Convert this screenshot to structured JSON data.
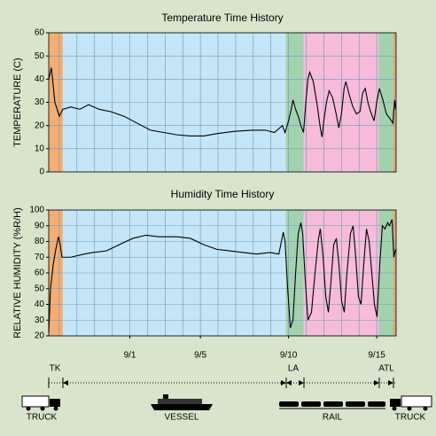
{
  "chart_data": [
    {
      "type": "line",
      "title": "Temperature Time History",
      "ylabel": "TEMPERATURE (C)",
      "color": "#000000",
      "grid": true,
      "xlim": [
        -3.6,
        16.1
      ],
      "ylim": [
        0,
        60
      ],
      "yticks": [
        0,
        10,
        20,
        30,
        40,
        50,
        60
      ],
      "xgrid": [
        -3,
        -2,
        -1,
        0,
        1,
        2,
        3,
        4,
        5,
        6,
        7,
        8,
        9,
        10,
        11,
        12,
        13,
        14,
        15,
        16
      ],
      "bands": [
        {
          "from": -3.6,
          "to": -2.8,
          "color": "#f4ad73"
        },
        {
          "from": -2.8,
          "to": 9.85,
          "color": "#c4e6f6"
        },
        {
          "from": 9.85,
          "to": 10.85,
          "color": "#a3d3ae"
        },
        {
          "from": 10.85,
          "to": 15.12,
          "color": "#f6bcd9"
        },
        {
          "from": 15.12,
          "to": 15.92,
          "color": "#a3d3ae"
        },
        {
          "from": 15.92,
          "to": 16.1,
          "color": "#f4ad73"
        }
      ],
      "x": [
        -3.6,
        -3.45,
        -3.25,
        -3.0,
        -2.8,
        -2.35,
        -1.84,
        -1.34,
        -0.74,
        -0.09,
        0.67,
        1.42,
        2.17,
        2.92,
        3.68,
        4.43,
        5.18,
        5.93,
        6.94,
        7.94,
        8.69,
        9.2,
        9.5,
        9.65,
        9.8,
        10.0,
        10.15,
        10.25,
        10.4,
        10.55,
        10.7,
        10.85,
        11.0,
        11.1,
        11.2,
        11.4,
        11.6,
        11.8,
        11.9,
        12.0,
        12.15,
        12.3,
        12.5,
        12.7,
        12.85,
        13.0,
        13.15,
        13.25,
        13.45,
        13.65,
        13.85,
        14.05,
        14.2,
        14.35,
        14.5,
        14.65,
        14.85,
        15.0,
        15.15,
        15.35,
        15.55,
        15.75,
        15.92,
        15.97,
        16.02,
        16.07
      ],
      "values": [
        40,
        45,
        30,
        24,
        27,
        28,
        27,
        29,
        27,
        26,
        24,
        21,
        18,
        17,
        16,
        15.5,
        15.5,
        16.5,
        17.5,
        18,
        18,
        17,
        19,
        20,
        17,
        22,
        27,
        31,
        27,
        24,
        20,
        17,
        32,
        40,
        43,
        39,
        30,
        19,
        15,
        22,
        30,
        35,
        32,
        25,
        19,
        25,
        36,
        39,
        33,
        28,
        25,
        26,
        34,
        36,
        30,
        26,
        22,
        30,
        36,
        31,
        25,
        23,
        21,
        27,
        31,
        27
      ]
    },
    {
      "type": "line",
      "title": "Humidity Time History",
      "ylabel": "RELATIVE HUMIDITY (%R/H)",
      "color": "#000000",
      "grid": true,
      "xlim": [
        -3.6,
        16.1
      ],
      "ylim": [
        20,
        100
      ],
      "yticks": [
        20,
        30,
        40,
        50,
        60,
        70,
        80,
        90,
        100
      ],
      "xgrid": [
        -3,
        -2,
        -1,
        0,
        1,
        2,
        3,
        4,
        5,
        6,
        7,
        8,
        9,
        10,
        11,
        12,
        13,
        14,
        15,
        16
      ],
      "xticks": [
        {
          "value": 1,
          "label": "9/1"
        },
        {
          "value": 5,
          "label": "9/5"
        },
        {
          "value": 10,
          "label": "9/10"
        },
        {
          "value": 15,
          "label": "9/15"
        }
      ],
      "bands": [
        {
          "from": -3.6,
          "to": -2.8,
          "color": "#f4ad73"
        },
        {
          "from": -2.8,
          "to": 9.85,
          "color": "#c4e6f6"
        },
        {
          "from": 9.85,
          "to": 10.85,
          "color": "#a3d3ae"
        },
        {
          "from": 10.85,
          "to": 15.12,
          "color": "#f6bcd9"
        },
        {
          "from": 15.12,
          "to": 15.92,
          "color": "#a3d3ae"
        },
        {
          "from": 15.92,
          "to": 16.1,
          "color": "#f4ad73"
        }
      ],
      "x": [
        -3.6,
        -3.5,
        -3.35,
        -3.2,
        -3.05,
        -2.95,
        -2.85,
        -2.35,
        -1.59,
        -1.09,
        -0.34,
        0.41,
        1.17,
        1.92,
        2.67,
        3.68,
        4.43,
        5.18,
        5.93,
        6.69,
        7.44,
        8.19,
        8.95,
        9.45,
        9.7,
        9.8,
        9.95,
        10.1,
        10.25,
        10.4,
        10.55,
        10.7,
        10.8,
        10.95,
        11.1,
        11.3,
        11.5,
        11.7,
        11.8,
        11.96,
        12.11,
        12.26,
        12.41,
        12.56,
        12.71,
        12.86,
        13.01,
        13.16,
        13.31,
        13.51,
        13.66,
        13.81,
        13.96,
        14.11,
        14.26,
        14.42,
        14.57,
        14.72,
        14.87,
        15.02,
        15.17,
        15.32,
        15.47,
        15.62,
        15.72,
        15.87,
        15.97,
        16.07
      ],
      "values": [
        22,
        50,
        65,
        75,
        83,
        78,
        70,
        70,
        72,
        73,
        74,
        78,
        82,
        84,
        83,
        83,
        82,
        78,
        75,
        74,
        73,
        72,
        73,
        72,
        86,
        80,
        50,
        25,
        30,
        60,
        85,
        92,
        85,
        55,
        30,
        35,
        60,
        82,
        88,
        70,
        45,
        35,
        55,
        78,
        82,
        65,
        42,
        35,
        60,
        85,
        90,
        70,
        45,
        40,
        65,
        88,
        80,
        60,
        40,
        32,
        65,
        90,
        88,
        92,
        90,
        94,
        70,
        75
      ]
    }
  ],
  "route": {
    "markers": [
      "TK",
      "LA",
      "ATL"
    ],
    "modes": [
      "TRUCK",
      "VESSEL",
      "RAIL",
      "TRUCK"
    ]
  }
}
